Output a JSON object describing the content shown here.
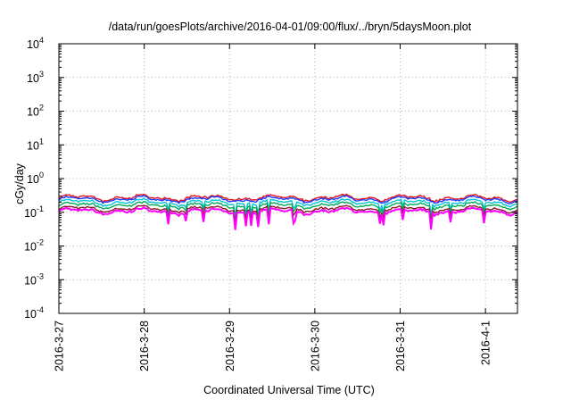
{
  "chart_data": {
    "type": "line",
    "title": "/data/run/goesPlots/archive/2016-04-01/09:00/flux/../bryn/5daysMoon.plot",
    "xlabel": "Coordinated Universal Time (UTC)",
    "ylabel": "cGy/day",
    "y_scale": "log",
    "ylim": [
      0.0001,
      10000
    ],
    "y_ticks": [
      {
        "exp": "4",
        "value": 10000
      },
      {
        "exp": "3",
        "value": 1000
      },
      {
        "exp": "2",
        "value": 100
      },
      {
        "exp": "1",
        "value": 10
      },
      {
        "exp": "0",
        "value": 1
      },
      {
        "exp": "-1",
        "value": 0.1
      },
      {
        "exp": "-2",
        "value": 0.01
      },
      {
        "exp": "-3",
        "value": 0.001
      },
      {
        "exp": "-4",
        "value": 0.0001
      }
    ],
    "x_range": [
      "2016-03-27 00:00",
      "2016-04-01 09:00"
    ],
    "x_ticks": [
      "2016-3-27",
      "2016-3-28",
      "2016-3-29",
      "2016-3-30",
      "2016-3-31",
      "2016-4-1"
    ],
    "grid": true,
    "series": [
      {
        "color": "#e8141c",
        "typical": 0.3
      },
      {
        "color": "#1e3cff",
        "typical": 0.27
      },
      {
        "color": "#00c4d8",
        "typical": 0.22
      },
      {
        "color": "#00aa55",
        "typical": 0.18
      },
      {
        "color": "#8a1a2a",
        "typical": 0.14
      },
      {
        "color": "#ff00ff",
        "typical": 0.12
      }
    ]
  }
}
